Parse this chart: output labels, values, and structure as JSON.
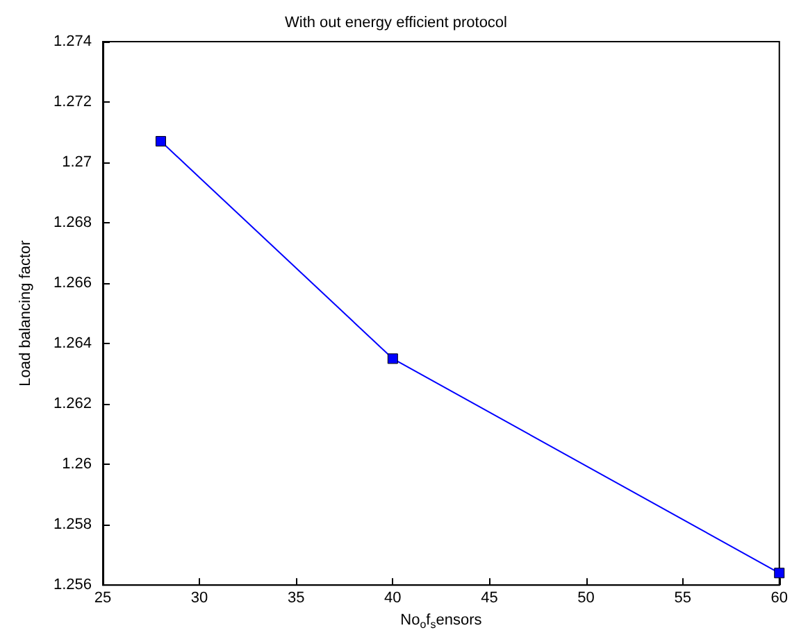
{
  "chart_data": {
    "type": "line",
    "title": "With out energy efficient protocol",
    "xlabel": "No$_{o}$f$_{s}$ensors",
    "ylabel": "Load balancing factor",
    "x": [
      28,
      40,
      60
    ],
    "series": [
      {
        "color": "#0000ff",
        "values": [
          1.2707,
          1.2635,
          1.2564
        ]
      }
    ],
    "xlim": [
      25,
      60
    ],
    "xticks": [
      25,
      30,
      35,
      40,
      45,
      50,
      55,
      60
    ],
    "ylim": [
      1.256,
      1.274
    ],
    "yticks": [
      1.256,
      1.258,
      1.26,
      1.262,
      1.264,
      1.266,
      1.268,
      1.27,
      1.272,
      1.274
    ],
    "grid": false,
    "marker": "square",
    "line_style": "solid"
  }
}
